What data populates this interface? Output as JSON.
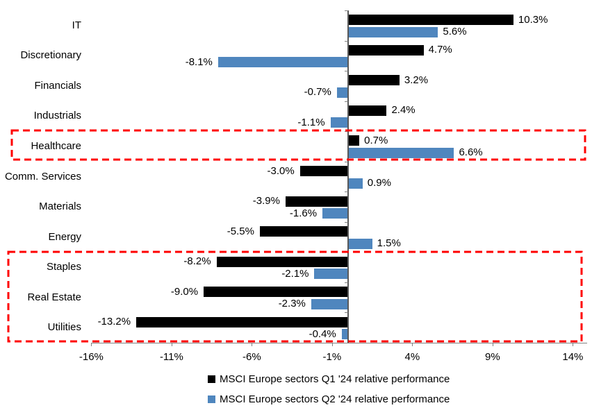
{
  "chart_data": {
    "type": "bar",
    "orientation": "horizontal",
    "title": "",
    "xlabel": "",
    "ylabel": "",
    "categories": [
      "IT",
      "Discretionary",
      "Financials",
      "Industrials",
      "Healthcare",
      "Comm. Services",
      "Materials",
      "Energy",
      "Staples",
      "Real Estate",
      "Utilities"
    ],
    "series": [
      {
        "name": "MSCI Europe sectors Q1 '24 relative performance",
        "color": "#000000",
        "values": [
          10.3,
          4.7,
          3.2,
          2.4,
          0.7,
          -3.0,
          -3.9,
          -5.5,
          -8.2,
          -9.0,
          -13.2
        ]
      },
      {
        "name": "MSCI Europe sectors Q2 '24 relative performance",
        "color": "#4F86BE",
        "values": [
          5.6,
          -8.1,
          -0.7,
          -1.1,
          6.6,
          0.9,
          -1.6,
          1.5,
          -2.1,
          -2.3,
          -0.4
        ]
      }
    ],
    "data_labels": [
      [
        "10.3%",
        "4.7%",
        "3.2%",
        "2.4%",
        "0.7%",
        "-3.0%",
        "-3.9%",
        "-5.5%",
        "-8.2%",
        "-9.0%",
        "-13.2%"
      ],
      [
        "5.6%",
        "-8.1%",
        "-0.7%",
        "-1.1%",
        "6.6%",
        "0.9%",
        "-1.6%",
        "1.5%",
        "-2.1%",
        "-2.3%",
        "-0.4%"
      ]
    ],
    "x_ticks": [
      "-16%",
      "-11%",
      "-6%",
      "-1%",
      "4%",
      "9%",
      "14%"
    ],
    "x_tick_values": [
      -16,
      -11,
      -6,
      -1,
      4,
      9,
      14
    ],
    "xlim": [
      -16,
      14
    ],
    "grid": false,
    "legend_position": "bottom",
    "annotations": [
      {
        "type": "highlight-box",
        "name": "healthcare-highlight-box",
        "categories": [
          "Healthcare"
        ],
        "color": "#FF0000",
        "style": "dashed"
      },
      {
        "type": "highlight-box",
        "name": "defensive-sectors-highlight-box",
        "categories": [
          "Staples",
          "Real Estate",
          "Utilities"
        ],
        "color": "#FF0000",
        "style": "dashed"
      }
    ]
  }
}
